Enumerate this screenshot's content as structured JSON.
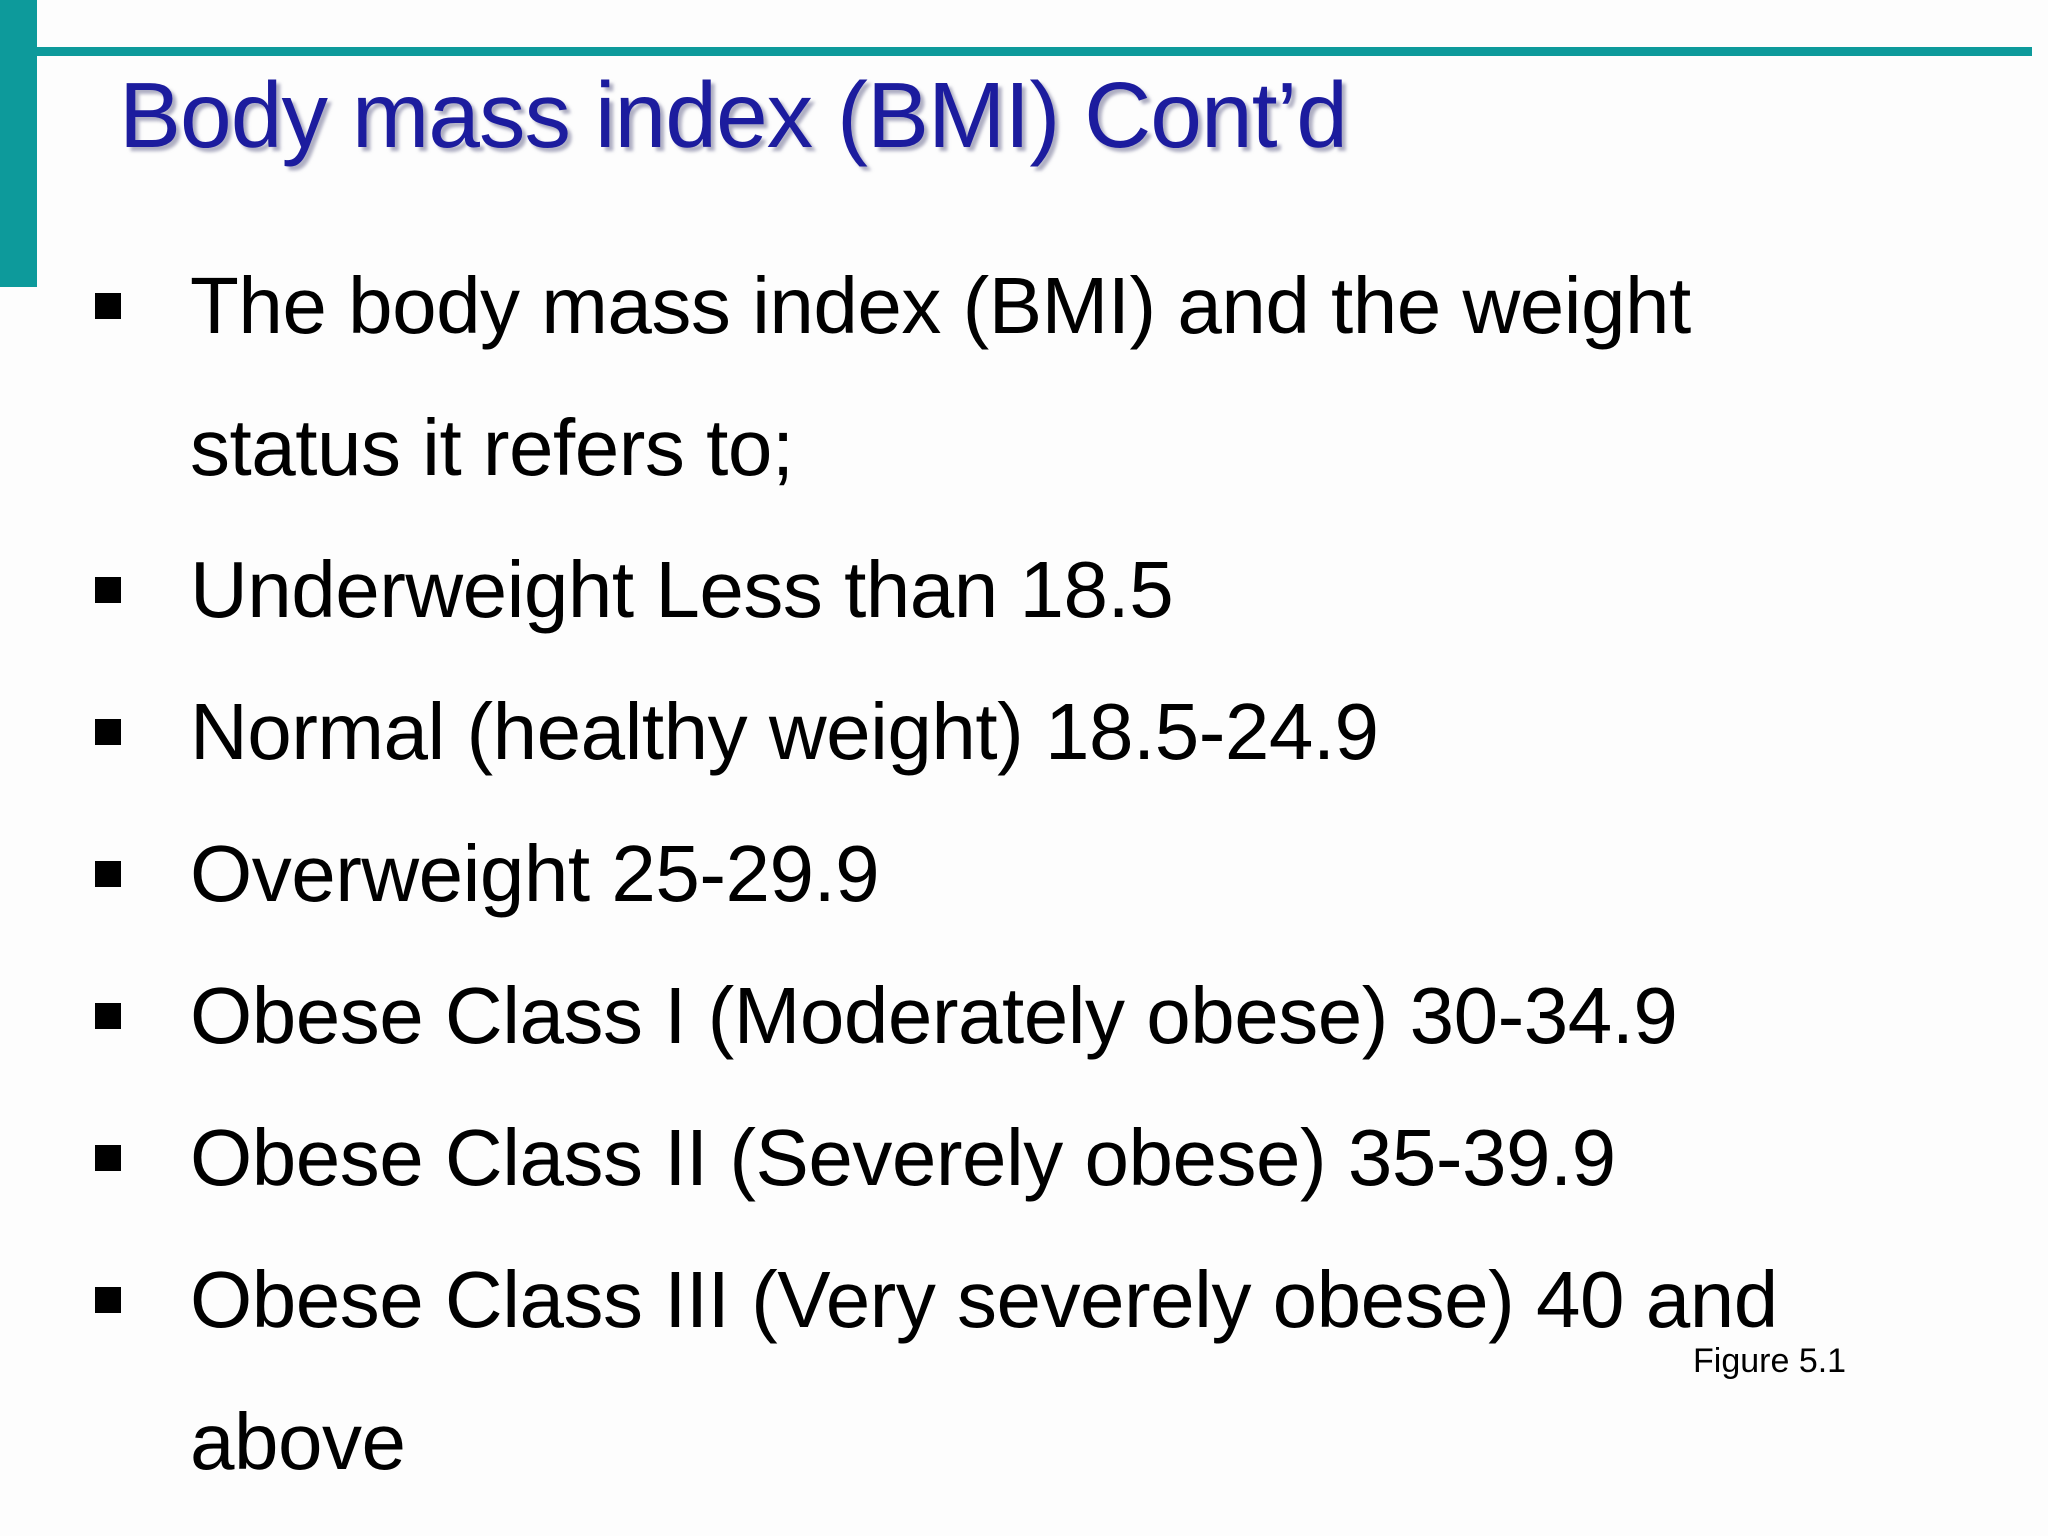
{
  "slide": {
    "title": "Body mass index (BMI) Cont’d",
    "bullets": [
      {
        "lines": [
          "The body mass index (BMI) and the weight",
          "status it refers to;"
        ]
      },
      {
        "lines": [
          "Underweight Less than 18.5"
        ]
      },
      {
        "lines": [
          "Normal (healthy weight) 18.5-24.9"
        ]
      },
      {
        "lines": [
          "Overweight 25-29.9"
        ]
      },
      {
        "lines": [
          "Obese Class I (Moderately obese) 30-34.9"
        ]
      },
      {
        "lines": [
          "Obese Class II (Severely obese) 35-39.9"
        ]
      },
      {
        "lines": [
          "Obese Class III (Very severely obese) 40 and",
          "above"
        ]
      }
    ],
    "figure_caption": "Figure 5.1",
    "colors": {
      "accent_teal": "#0d9a9b",
      "title_blue": "#1c1c9e",
      "body_text": "#000000"
    }
  }
}
